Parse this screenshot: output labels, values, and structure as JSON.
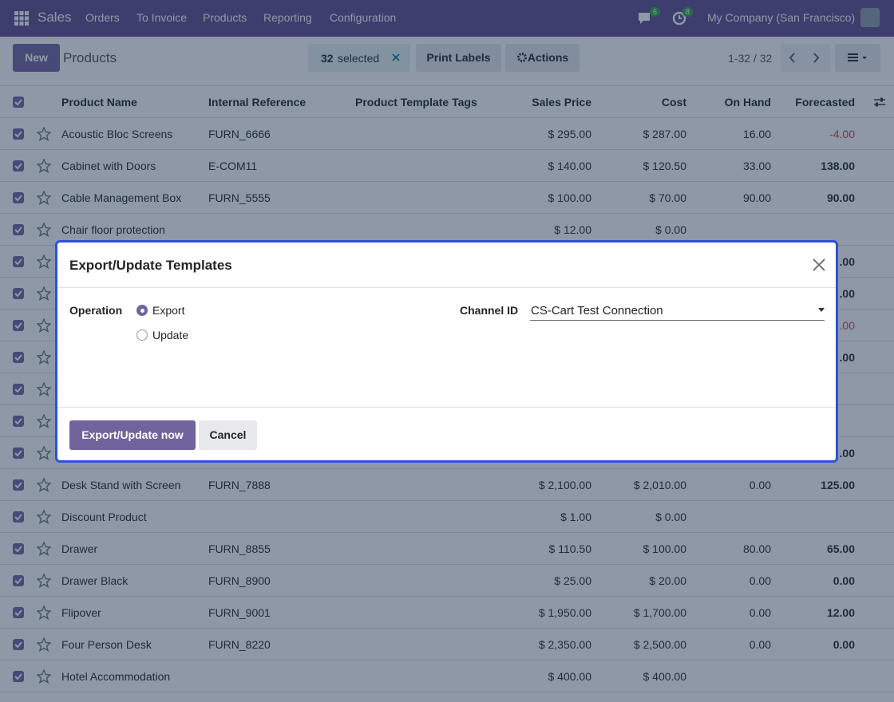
{
  "navbar": {
    "app": "Sales",
    "menu": [
      "Orders",
      "To Invoice",
      "Products",
      "Reporting",
      "Configuration"
    ],
    "messages_badge": "6",
    "activities_badge": "8",
    "company": "My Company (San Francisco)"
  },
  "control_panel": {
    "new_button": "New",
    "breadcrumb": "Products",
    "selected_count": "32",
    "selected_label": "selected",
    "print_labels": "Print Labels",
    "actions": "Actions",
    "pager": "1-32 / 32"
  },
  "table": {
    "columns": [
      "Product Name",
      "Internal Reference",
      "Product Template Tags",
      "Sales Price",
      "Cost",
      "On Hand",
      "Forecasted"
    ],
    "rows": [
      {
        "name": "Acoustic Bloc Screens",
        "ref": "FURN_6666",
        "price": "$ 295.00",
        "cost": "$ 287.00",
        "on_hand": "16.00",
        "forecasted": "-4.00",
        "forecasted_negative": true
      },
      {
        "name": "Cabinet with Doors",
        "ref": "E-COM11",
        "price": "$ 140.00",
        "cost": "$ 120.50",
        "on_hand": "33.00",
        "forecasted": "138.00"
      },
      {
        "name": "Cable Management Box",
        "ref": "FURN_5555",
        "price": "$ 100.00",
        "cost": "$ 70.00",
        "on_hand": "90.00",
        "forecasted": "90.00"
      },
      {
        "name": "Chair floor protection",
        "price": "$ 12.00",
        "cost": "$ 0.00"
      },
      {
        "forecasted": ".00"
      },
      {
        "forecasted": ".00"
      },
      {
        "forecasted": ".00",
        "forecasted_negative": true
      },
      {
        "forecasted": ".00"
      },
      {},
      {},
      {
        "forecasted": ".00"
      },
      {
        "name": "Desk Stand with Screen",
        "ref": "FURN_7888",
        "price": "$ 2,100.00",
        "cost": "$ 2,010.00",
        "on_hand": "0.00",
        "forecasted": "125.00"
      },
      {
        "name": "Discount Product",
        "price": "$ 1.00",
        "cost": "$ 0.00"
      },
      {
        "name": "Drawer",
        "ref": "FURN_8855",
        "price": "$ 110.50",
        "cost": "$ 100.00",
        "on_hand": "80.00",
        "forecasted": "65.00"
      },
      {
        "name": "Drawer Black",
        "ref": "FURN_8900",
        "price": "$ 25.00",
        "cost": "$ 20.00",
        "on_hand": "0.00",
        "forecasted": "0.00"
      },
      {
        "name": "Flipover",
        "ref": "FURN_9001",
        "price": "$ 1,950.00",
        "cost": "$ 1,700.00",
        "on_hand": "0.00",
        "forecasted": "12.00"
      },
      {
        "name": "Four Person Desk",
        "ref": "FURN_8220",
        "price": "$ 2,350.00",
        "cost": "$ 2,500.00",
        "on_hand": "0.00",
        "forecasted": "0.00"
      },
      {
        "name": "Hotel Accommodation",
        "price": "$ 400.00",
        "cost": "$ 400.00"
      }
    ]
  },
  "dialog": {
    "title": "Export/Update Templates",
    "operation_label": "Operation",
    "options": [
      "Export",
      "Update"
    ],
    "selected_option": 0,
    "channel_label": "Channel ID",
    "channel_value": "CS-Cart Test Connection",
    "primary_button": "Export/Update now",
    "secondary_button": "Cancel"
  }
}
